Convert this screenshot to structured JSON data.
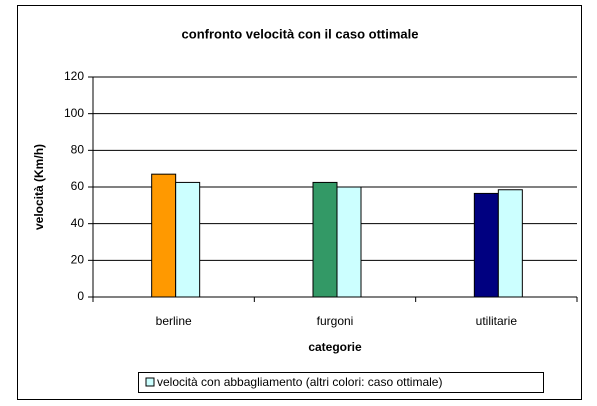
{
  "chart_data": {
    "type": "bar",
    "title": "confronto velocità con il caso ottimale",
    "x_label": "categorie",
    "y_label": "velocità (Km/h)",
    "categories": [
      "berline",
      "furgoni",
      "utilitarie"
    ],
    "series": [
      {
        "colors": [
          "#ff9900",
          "#339966",
          "#000080"
        ],
        "values": [
          67,
          62.5,
          56.5
        ]
      },
      {
        "name": "velocità con abbagliamento (altri colori: caso ottimale)",
        "color": "#ccffff",
        "values": [
          62.5,
          60,
          58.5
        ]
      }
    ],
    "ylim": [
      0,
      120
    ],
    "yticks": [
      0,
      20,
      40,
      60,
      80,
      100,
      120
    ],
    "grid": true,
    "legend": "bottom"
  }
}
